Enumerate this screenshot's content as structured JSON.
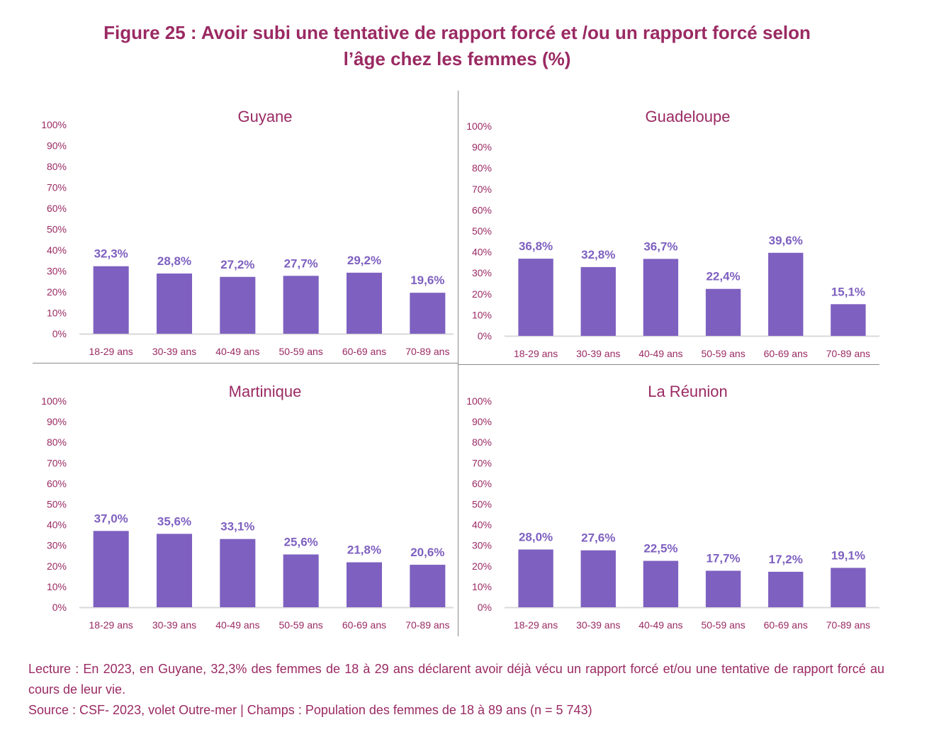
{
  "figure": {
    "title_line1": "Figure 25 : Avoir subi une tentative de rapport forcé et /ou un rapport forcé selon",
    "title_line2": "l’âge chez les femmes (%)"
  },
  "colors": {
    "bar": "#7e60c0",
    "data_label": "#7e60c0",
    "axis_text": "#9a2a63",
    "title_text": "#9a2a63",
    "axis_line": "#d9d9d9"
  },
  "notes": {
    "lecture": "Lecture : En 2023, en Guyane, 32,3% des femmes de 18 à 29 ans déclarent avoir déjà vécu un rapport forcé et/ou une tentative de rapport forcé au cours de leur vie.",
    "source": "Source : CSF- 2023, volet Outre-mer | Champs : Population des femmes de 18 à 89 ans (n = 5 743)"
  },
  "chart_data": [
    {
      "type": "bar",
      "title": "Guyane",
      "categories": [
        "18-29 ans",
        "30-39 ans",
        "40-49 ans",
        "50-59 ans",
        "60-69 ans",
        "70-89 ans"
      ],
      "values": [
        32.3,
        28.8,
        27.2,
        27.7,
        29.2,
        19.6
      ],
      "labels": [
        "32,3%",
        "28,8%",
        "27,2%",
        "27,7%",
        "29,2%",
        "19,6%"
      ],
      "yticks": [
        "0%",
        "10%",
        "20%",
        "30%",
        "40%",
        "50%",
        "60%",
        "70%",
        "80%",
        "90%",
        "100%"
      ],
      "ylim": [
        0,
        100
      ],
      "xlabel": "",
      "ylabel": "",
      "grid": false,
      "legend": "none"
    },
    {
      "type": "bar",
      "title": "Guadeloupe",
      "categories": [
        "18-29 ans",
        "30-39 ans",
        "40-49 ans",
        "50-59 ans",
        "60-69 ans",
        "70-89 ans"
      ],
      "values": [
        36.8,
        32.8,
        36.7,
        22.4,
        39.6,
        15.1
      ],
      "labels": [
        "36,8%",
        "32,8%",
        "36,7%",
        "22,4%",
        "39,6%",
        "15,1%"
      ],
      "yticks": [
        "0%",
        "10%",
        "20%",
        "30%",
        "40%",
        "50%",
        "60%",
        "70%",
        "80%",
        "90%",
        "100%"
      ],
      "ylim": [
        0,
        100
      ],
      "xlabel": "",
      "ylabel": "",
      "grid": false,
      "legend": "none"
    },
    {
      "type": "bar",
      "title": "Martinique",
      "categories": [
        "18-29 ans",
        "30-39 ans",
        "40-49 ans",
        "50-59 ans",
        "60-69 ans",
        "70-89 ans"
      ],
      "values": [
        37.0,
        35.6,
        33.1,
        25.6,
        21.8,
        20.6
      ],
      "labels": [
        "37,0%",
        "35,6%",
        "33,1%",
        "25,6%",
        "21,8%",
        "20,6%"
      ],
      "yticks": [
        "0%",
        "10%",
        "20%",
        "30%",
        "40%",
        "50%",
        "60%",
        "70%",
        "80%",
        "90%",
        "100%"
      ],
      "ylim": [
        0,
        100
      ],
      "xlabel": "",
      "ylabel": "",
      "grid": false,
      "legend": "none"
    },
    {
      "type": "bar",
      "title": "La Réunion",
      "categories": [
        "18-29 ans",
        "30-39 ans",
        "40-49 ans",
        "50-59 ans",
        "60-69 ans",
        "70-89 ans"
      ],
      "values": [
        28.0,
        27.6,
        22.5,
        17.7,
        17.2,
        19.1
      ],
      "labels": [
        "28,0%",
        "27,6%",
        "22,5%",
        "17,7%",
        "17,2%",
        "19,1%"
      ],
      "yticks": [
        "0%",
        "10%",
        "20%",
        "30%",
        "40%",
        "50%",
        "60%",
        "70%",
        "80%",
        "90%",
        "100%"
      ],
      "ylim": [
        0,
        100
      ],
      "xlabel": "",
      "ylabel": "",
      "grid": false,
      "legend": "none"
    }
  ]
}
